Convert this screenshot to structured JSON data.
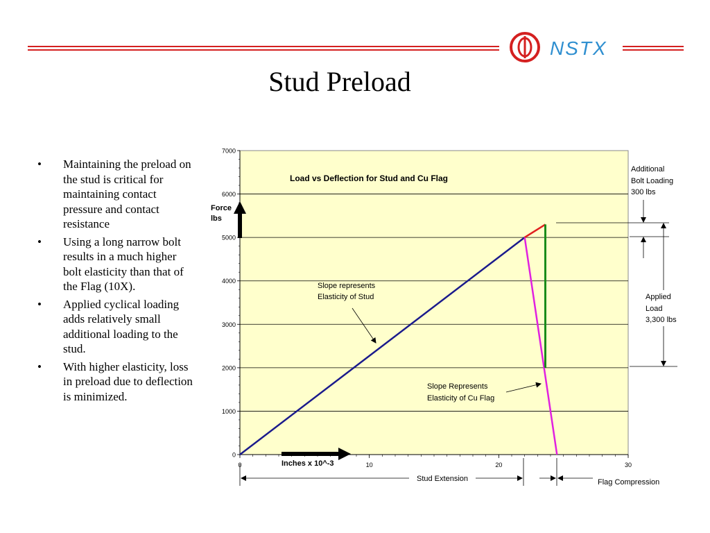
{
  "slide": {
    "title": "Stud Preload",
    "logo_text": "NSTX",
    "bullets": [
      "Maintaining the preload on the stud is critical for maintaining contact pressure and contact resistance",
      "Using a long narrow bolt results in a much higher bolt elasticity than that of the Flag (10X).",
      "Applied cyclical loading adds relatively small additional loading to the stud.",
      "With higher elasticity, loss in preload due to deflection is minimized."
    ],
    "colors": {
      "accent": "#d42020",
      "logo_text": "#2f8fd0"
    }
  },
  "chart_data": {
    "type": "line",
    "title": "Load vs Deflection for Stud and Cu Flag",
    "xlim": [
      0,
      30
    ],
    "ylim": [
      0,
      7000
    ],
    "x_ticks": [
      0,
      10,
      20,
      30
    ],
    "y_ticks": [
      0,
      1000,
      2000,
      3000,
      4000,
      5000,
      6000,
      7000
    ],
    "grid": "horizontal",
    "plot_background": "#ffffcc",
    "series": [
      {
        "color": "#1a1a8c",
        "points": [
          [
            0,
            0
          ],
          [
            22,
            5000
          ]
        ]
      },
      {
        "color": "#e020e0",
        "points": [
          [
            22,
            5000
          ],
          [
            24.5,
            0
          ]
        ]
      },
      {
        "color": "#e02020",
        "points": [
          [
            22,
            5000
          ],
          [
            23.6,
            5300
          ]
        ]
      },
      {
        "color": "#1a8c1a",
        "points": [
          [
            23.6,
            5300
          ],
          [
            23.6,
            2000
          ]
        ]
      }
    ],
    "annotations": {
      "ylabel_arrow": "Force lbs",
      "xlabel_arrow": "Inches x 10^-3",
      "stud_slope": "Slope represents Elasticity of Stud",
      "flag_slope": "Slope Represents Elasticity of Cu Flag",
      "additional": "Additional Bolt Loading 300 lbs",
      "applied": "Applied Load 3,300 lbs",
      "stud_extension": "Stud Extension",
      "flag_compression": "Flag Compression"
    }
  }
}
